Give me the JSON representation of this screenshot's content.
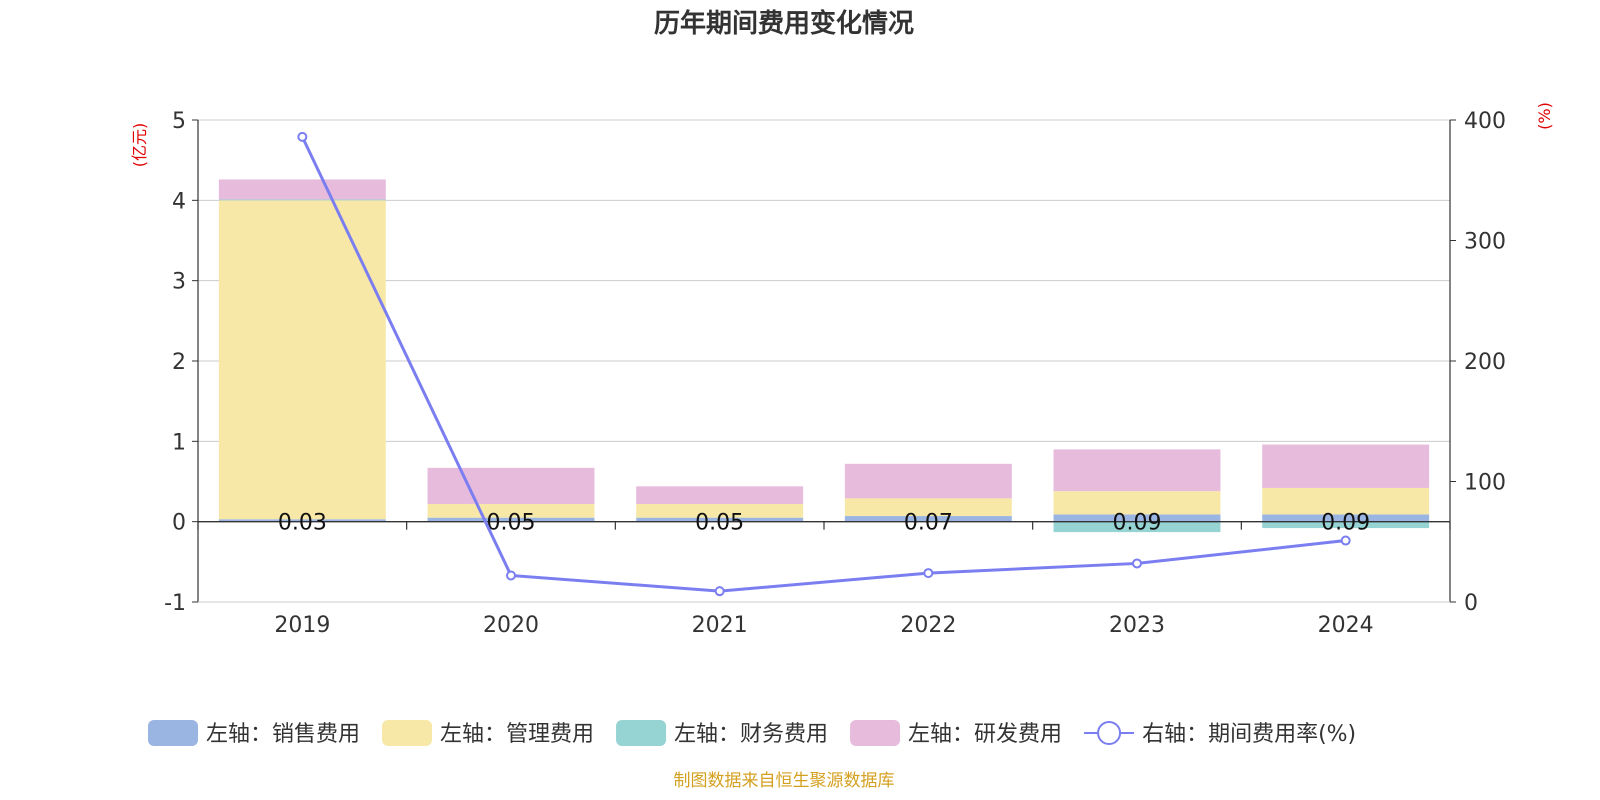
{
  "chart_data": {
    "type": "bar",
    "title": "历年期间费用变化情况",
    "categories": [
      "2019",
      "2020",
      "2021",
      "2022",
      "2023",
      "2024"
    ],
    "left_axis": {
      "unit": "(亿元)",
      "ylim": [
        -1,
        5
      ],
      "ticks": [
        "-1",
        "0",
        "1",
        "2",
        "3",
        "4",
        "5"
      ]
    },
    "right_axis": {
      "unit": "(%)",
      "ylim": [
        0,
        400
      ],
      "ticks": [
        "0",
        "100",
        "200",
        "300",
        "400"
      ]
    },
    "stacked": true,
    "series": [
      {
        "name": "左轴：销售费用",
        "type": "bar",
        "axis": "left",
        "color": "#9bb5e3",
        "values": [
          0.03,
          0.05,
          0.05,
          0.07,
          0.09,
          0.09
        ]
      },
      {
        "name": "左轴：管理费用",
        "type": "bar",
        "axis": "left",
        "color": "#f8e8a8",
        "values": [
          3.97,
          0.17,
          0.17,
          0.22,
          0.29,
          0.33
        ]
      },
      {
        "name": "左轴：财务费用",
        "type": "bar",
        "axis": "left",
        "color": "#96d4d4",
        "values": [
          0.01,
          0.0,
          0.0,
          0.0,
          -0.13,
          -0.08
        ]
      },
      {
        "name": "左轴：研发费用",
        "type": "bar",
        "axis": "left",
        "color": "#e7bbdc",
        "values": [
          0.25,
          0.45,
          0.22,
          0.43,
          0.52,
          0.54
        ]
      },
      {
        "name": "右轴：期间费用率(%)",
        "type": "line",
        "axis": "right",
        "color": "#7b7ef0",
        "values": [
          386,
          22,
          9,
          24,
          32,
          51
        ]
      }
    ],
    "bar_labels": [
      "0.03",
      "0.05",
      "0.05",
      "0.07",
      "0.09",
      "0.09"
    ],
    "grid": true,
    "legend_position": "bottom"
  },
  "colors": {
    "unit": "#e00000",
    "source": "#d4a020",
    "axis": "#333333",
    "grid": "#cccccc"
  },
  "source_text": "制图数据来自恒生聚源数据库"
}
